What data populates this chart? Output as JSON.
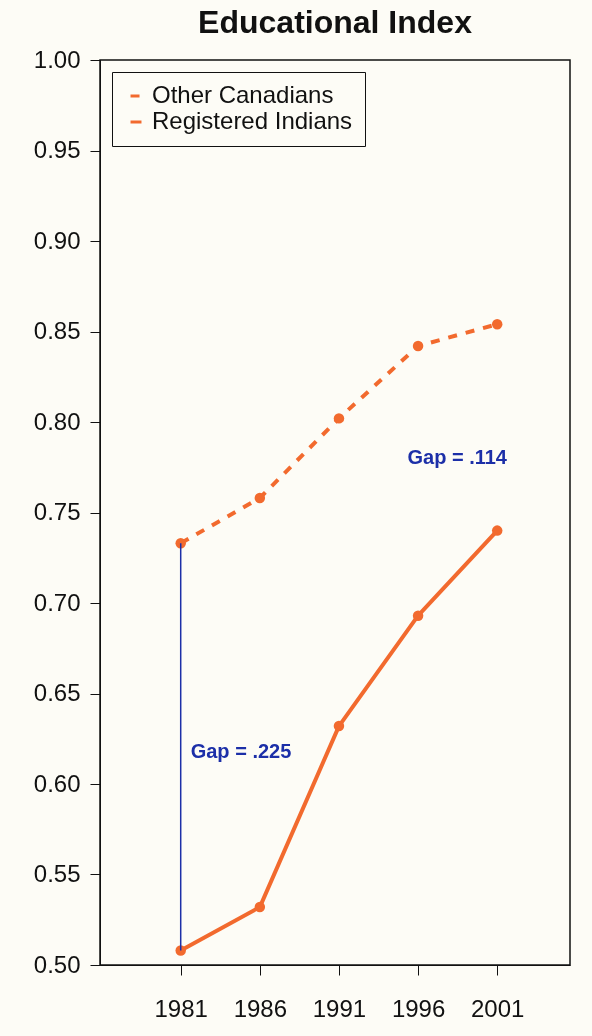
{
  "chart_data": {
    "type": "line",
    "title": "Educational Index",
    "x": [
      1981,
      1986,
      1991,
      1996,
      2001
    ],
    "series": [
      {
        "name": "Other Canadians",
        "color": "#f26a2e",
        "line_style": "dashed",
        "values": [
          0.733,
          0.758,
          0.802,
          0.842,
          0.854
        ]
      },
      {
        "name": "Registered Indians",
        "color": "#f26a2e",
        "line_style": "solid",
        "values": [
          0.508,
          0.532,
          0.632,
          0.693,
          0.74
        ]
      },
      {
        "color": "#1c2fa8",
        "line_style": "solid",
        "marker": "none",
        "x": [
          1981,
          1981
        ],
        "values": [
          0.508,
          0.733
        ]
      }
    ],
    "xlim": [
      1975.9,
      2005.6
    ],
    "xticks": [
      1981,
      1986,
      1991,
      1996,
      2001
    ],
    "ylim": [
      0.5,
      1.0
    ],
    "yticks": [
      {
        "value": 0.5,
        "label": "0.50"
      },
      0.55,
      {
        "value": 0.6,
        "label": "0.60"
      },
      0.65,
      {
        "value": 0.7,
        "label": "0.70"
      },
      0.75,
      {
        "value": 0.8,
        "label": "0.80"
      },
      0.85,
      {
        "value": 0.9,
        "label": "0.90"
      },
      0.95,
      {
        "value": 1.0,
        "label": "1.00"
      }
    ],
    "marker": "circle",
    "grid": false,
    "legend": "top left",
    "annotations": [
      "Gap = .225",
      "Gap = .114"
    ]
  }
}
